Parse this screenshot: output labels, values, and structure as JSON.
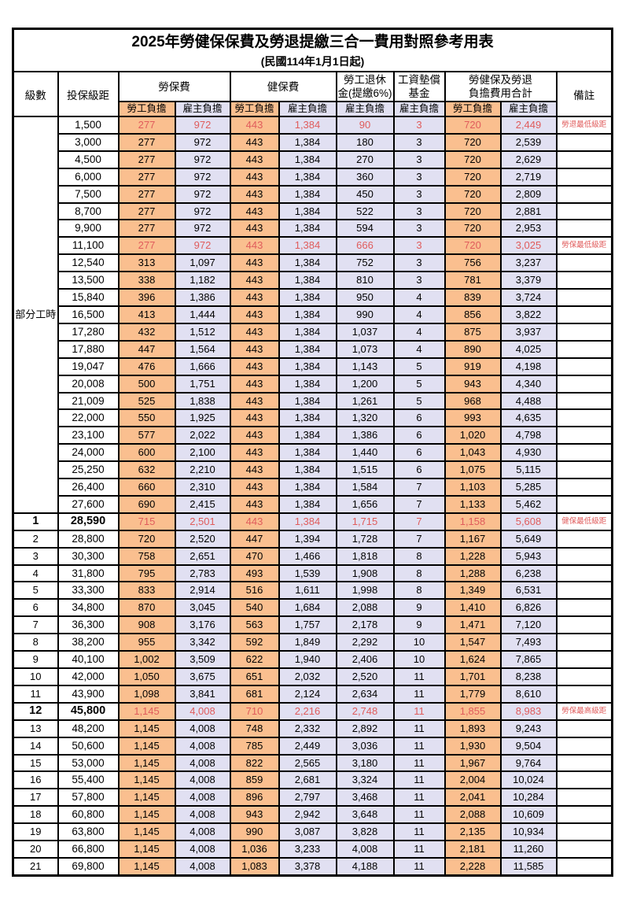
{
  "page": {
    "title": "2025年勞健保保費及勞退提繳三合一費用對照參考用表",
    "subtitle": "(民國114年1月1日起)"
  },
  "colors": {
    "employee_bg": "#FABF8F",
    "employer_bg": "#E1E0F2",
    "highlight_red": "#E05C5C",
    "border": "#000000"
  },
  "header": {
    "level": "級數",
    "bracket": "投保級距",
    "labor_fee": "勞保費",
    "health_fee": "健保費",
    "pension_line1": "勞工退休",
    "pension_line2": "金(提繳6%)",
    "wage_fund_line1": "工資墊償",
    "wage_fund_line2": "基金",
    "total_line1": "勞健保及勞退",
    "total_line2": "負擔費用合計",
    "remark": "備註",
    "employee_share": "勞工負擔",
    "employer_share": "雇主負擔"
  },
  "part_time_label": "部分工時",
  "table": {
    "part_time_rowspan": 23,
    "columns_order": [
      "level",
      "bracket",
      "labor_employee",
      "labor_employer",
      "health_employee",
      "health_employer",
      "pension_employer",
      "wage_fund_employer",
      "total_employee",
      "total_employer",
      "remark"
    ],
    "rows": [
      {
        "c": [
          "",
          "1,500",
          "277",
          "972",
          "443",
          "1,384",
          "90",
          "3",
          "720",
          "2,449",
          "勞退最低級距"
        ],
        "red": true
      },
      {
        "c": [
          "",
          "3,000",
          "277",
          "972",
          "443",
          "1,384",
          "180",
          "3",
          "720",
          "2,539",
          ""
        ]
      },
      {
        "c": [
          "",
          "4,500",
          "277",
          "972",
          "443",
          "1,384",
          "270",
          "3",
          "720",
          "2,629",
          ""
        ]
      },
      {
        "c": [
          "",
          "6,000",
          "277",
          "972",
          "443",
          "1,384",
          "360",
          "3",
          "720",
          "2,719",
          ""
        ]
      },
      {
        "c": [
          "",
          "7,500",
          "277",
          "972",
          "443",
          "1,384",
          "450",
          "3",
          "720",
          "2,809",
          ""
        ]
      },
      {
        "c": [
          "",
          "8,700",
          "277",
          "972",
          "443",
          "1,384",
          "522",
          "3",
          "720",
          "2,881",
          ""
        ]
      },
      {
        "c": [
          "",
          "9,900",
          "277",
          "972",
          "443",
          "1,384",
          "594",
          "3",
          "720",
          "2,953",
          ""
        ]
      },
      {
        "c": [
          "",
          "11,100",
          "277",
          "972",
          "443",
          "1,384",
          "666",
          "3",
          "720",
          "3,025",
          "勞保最低級距"
        ],
        "red": true
      },
      {
        "c": [
          "",
          "12,540",
          "313",
          "1,097",
          "443",
          "1,384",
          "752",
          "3",
          "756",
          "3,237",
          ""
        ]
      },
      {
        "c": [
          "",
          "13,500",
          "338",
          "1,182",
          "443",
          "1,384",
          "810",
          "3",
          "781",
          "3,379",
          ""
        ]
      },
      {
        "c": [
          "",
          "15,840",
          "396",
          "1,386",
          "443",
          "1,384",
          "950",
          "4",
          "839",
          "3,724",
          ""
        ]
      },
      {
        "c": [
          "",
          "16,500",
          "413",
          "1,444",
          "443",
          "1,384",
          "990",
          "4",
          "856",
          "3,822",
          ""
        ]
      },
      {
        "c": [
          "",
          "17,280",
          "432",
          "1,512",
          "443",
          "1,384",
          "1,037",
          "4",
          "875",
          "3,937",
          ""
        ]
      },
      {
        "c": [
          "",
          "17,880",
          "447",
          "1,564",
          "443",
          "1,384",
          "1,073",
          "4",
          "890",
          "4,025",
          ""
        ]
      },
      {
        "c": [
          "",
          "19,047",
          "476",
          "1,666",
          "443",
          "1,384",
          "1,143",
          "5",
          "919",
          "4,198",
          ""
        ]
      },
      {
        "c": [
          "",
          "20,008",
          "500",
          "1,751",
          "443",
          "1,384",
          "1,200",
          "5",
          "943",
          "4,340",
          ""
        ]
      },
      {
        "c": [
          "",
          "21,009",
          "525",
          "1,838",
          "443",
          "1,384",
          "1,261",
          "5",
          "968",
          "4,488",
          ""
        ]
      },
      {
        "c": [
          "",
          "22,000",
          "550",
          "1,925",
          "443",
          "1,384",
          "1,320",
          "6",
          "993",
          "4,635",
          ""
        ]
      },
      {
        "c": [
          "",
          "23,100",
          "577",
          "2,022",
          "443",
          "1,384",
          "1,386",
          "6",
          "1,020",
          "4,798",
          ""
        ]
      },
      {
        "c": [
          "",
          "24,000",
          "600",
          "2,100",
          "443",
          "1,384",
          "1,440",
          "6",
          "1,043",
          "4,930",
          ""
        ]
      },
      {
        "c": [
          "",
          "25,250",
          "632",
          "2,210",
          "443",
          "1,384",
          "1,515",
          "6",
          "1,075",
          "5,115",
          ""
        ]
      },
      {
        "c": [
          "",
          "26,400",
          "660",
          "2,310",
          "443",
          "1,384",
          "1,584",
          "7",
          "1,103",
          "5,285",
          ""
        ]
      },
      {
        "c": [
          "",
          "27,600",
          "690",
          "2,415",
          "443",
          "1,384",
          "1,656",
          "7",
          "1,133",
          "5,462",
          ""
        ]
      },
      {
        "c": [
          "1",
          "28,590",
          "715",
          "2,501",
          "443",
          "1,384",
          "1,715",
          "7",
          "1,158",
          "5,608",
          "健保最低級距"
        ],
        "red": true,
        "bold": true
      },
      {
        "c": [
          "2",
          "28,800",
          "720",
          "2,520",
          "447",
          "1,394",
          "1,728",
          "7",
          "1,167",
          "5,649",
          ""
        ]
      },
      {
        "c": [
          "3",
          "30,300",
          "758",
          "2,651",
          "470",
          "1,466",
          "1,818",
          "8",
          "1,228",
          "5,943",
          ""
        ]
      },
      {
        "c": [
          "4",
          "31,800",
          "795",
          "2,783",
          "493",
          "1,539",
          "1,908",
          "8",
          "1,288",
          "6,238",
          ""
        ]
      },
      {
        "c": [
          "5",
          "33,300",
          "833",
          "2,914",
          "516",
          "1,611",
          "1,998",
          "8",
          "1,349",
          "6,531",
          ""
        ]
      },
      {
        "c": [
          "6",
          "34,800",
          "870",
          "3,045",
          "540",
          "1,684",
          "2,088",
          "9",
          "1,410",
          "6,826",
          ""
        ]
      },
      {
        "c": [
          "7",
          "36,300",
          "908",
          "3,176",
          "563",
          "1,757",
          "2,178",
          "9",
          "1,471",
          "7,120",
          ""
        ]
      },
      {
        "c": [
          "8",
          "38,200",
          "955",
          "3,342",
          "592",
          "1,849",
          "2,292",
          "10",
          "1,547",
          "7,493",
          ""
        ]
      },
      {
        "c": [
          "9",
          "40,100",
          "1,002",
          "3,509",
          "622",
          "1,940",
          "2,406",
          "10",
          "1,624",
          "7,865",
          ""
        ]
      },
      {
        "c": [
          "10",
          "42,000",
          "1,050",
          "3,675",
          "651",
          "2,032",
          "2,520",
          "11",
          "1,701",
          "8,238",
          ""
        ]
      },
      {
        "c": [
          "11",
          "43,900",
          "1,098",
          "3,841",
          "681",
          "2,124",
          "2,634",
          "11",
          "1,779",
          "8,610",
          ""
        ]
      },
      {
        "c": [
          "12",
          "45,800",
          "1,145",
          "4,008",
          "710",
          "2,216",
          "2,748",
          "11",
          "1,855",
          "8,983",
          "勞保最高級距"
        ],
        "red": true,
        "bold": true
      },
      {
        "c": [
          "13",
          "48,200",
          "1,145",
          "4,008",
          "748",
          "2,332",
          "2,892",
          "11",
          "1,893",
          "9,243",
          ""
        ]
      },
      {
        "c": [
          "14",
          "50,600",
          "1,145",
          "4,008",
          "785",
          "2,449",
          "3,036",
          "11",
          "1,930",
          "9,504",
          ""
        ]
      },
      {
        "c": [
          "15",
          "53,000",
          "1,145",
          "4,008",
          "822",
          "2,565",
          "3,180",
          "11",
          "1,967",
          "9,764",
          ""
        ]
      },
      {
        "c": [
          "16",
          "55,400",
          "1,145",
          "4,008",
          "859",
          "2,681",
          "3,324",
          "11",
          "2,004",
          "10,024",
          ""
        ]
      },
      {
        "c": [
          "17",
          "57,800",
          "1,145",
          "4,008",
          "896",
          "2,797",
          "3,468",
          "11",
          "2,041",
          "10,284",
          ""
        ]
      },
      {
        "c": [
          "18",
          "60,800",
          "1,145",
          "4,008",
          "943",
          "2,942",
          "3,648",
          "11",
          "2,088",
          "10,609",
          ""
        ]
      },
      {
        "c": [
          "19",
          "63,800",
          "1,145",
          "4,008",
          "990",
          "3,087",
          "3,828",
          "11",
          "2,135",
          "10,934",
          ""
        ]
      },
      {
        "c": [
          "20",
          "66,800",
          "1,145",
          "4,008",
          "1,036",
          "3,233",
          "4,008",
          "11",
          "2,181",
          "11,260",
          ""
        ]
      },
      {
        "c": [
          "21",
          "69,800",
          "1,145",
          "4,008",
          "1,083",
          "3,378",
          "4,188",
          "11",
          "2,228",
          "11,585",
          ""
        ]
      }
    ]
  }
}
